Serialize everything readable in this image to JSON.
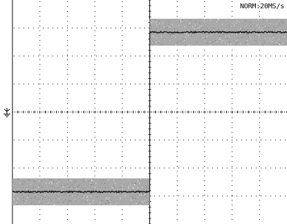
{
  "display": {
    "acquisition_label": "NORM:20MS/s",
    "colors": {
      "background": "#ffffff",
      "grid": "#000000",
      "trace": "#111111",
      "noise_band": "#a9a9a9"
    }
  },
  "chart_data": {
    "type": "line",
    "title": "",
    "xlabel": "",
    "ylabel": "",
    "grid": true,
    "x_divisions": 10,
    "y_divisions": 8,
    "x_range": [
      0,
      10
    ],
    "y_range": [
      -4,
      4
    ],
    "series": [
      {
        "x": [
          0,
          5,
          5,
          10
        ],
        "y": [
          -2.85,
          -2.85,
          2.85,
          2.85
        ],
        "noise_band_halfwidth": 0.48
      }
    ],
    "ground_marker_level": 0,
    "trigger_position_div": 5
  }
}
